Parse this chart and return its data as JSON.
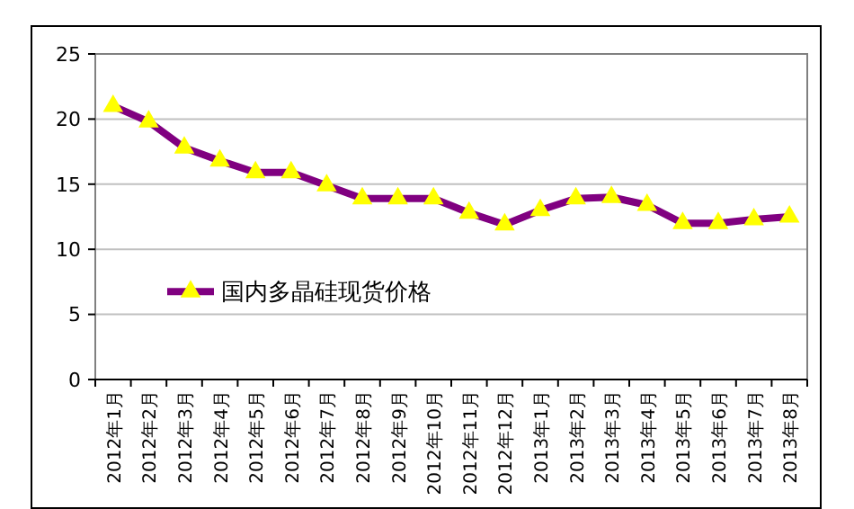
{
  "chart_data": {
    "type": "line",
    "categories": [
      "2012年1月",
      "2012年2月",
      "2012年3月",
      "2012年4月",
      "2012年5月",
      "2012年6月",
      "2012年7月",
      "2012年8月",
      "2012年9月",
      "2012年10月",
      "2012年11月",
      "2012年12月",
      "2013年1月",
      "2013年2月",
      "2013年3月",
      "2013年4月",
      "2013年5月",
      "2013年6月",
      "2013年7月",
      "2013年8月"
    ],
    "series": [
      {
        "name": "国内多晶硅现货价格",
        "color": "#800080",
        "values": [
          21,
          19.8,
          17.8,
          16.8,
          15.9,
          15.9,
          14.9,
          13.9,
          13.9,
          13.9,
          12.8,
          11.9,
          13,
          13.9,
          14,
          13.4,
          12,
          12,
          12.3,
          12.5
        ]
      }
    ],
    "ylim": [
      0,
      25
    ],
    "yticks": [
      0,
      5,
      10,
      15,
      20,
      25
    ],
    "grid": "y",
    "legend": "left",
    "marker": "triangle"
  }
}
